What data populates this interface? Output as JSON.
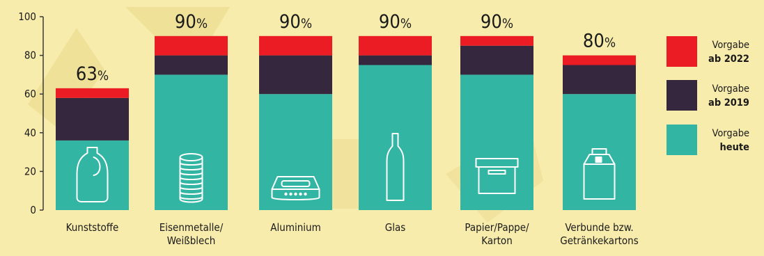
{
  "colors": {
    "background": "#f7ecac",
    "watermark": "#eddd92",
    "vorgabe_ab_2022": "#ec1c24",
    "vorgabe_ab_2019": "#35283e",
    "vorgabe_heute": "#33b5a4",
    "icon": "#ffffff",
    "axis": "#3a3a3a"
  },
  "chart_data": {
    "type": "bar",
    "stacked": true,
    "ylim": [
      0,
      100
    ],
    "yticks": [
      0,
      20,
      40,
      60,
      80,
      100
    ],
    "categories": [
      {
        "label": [
          "Kunststoffe"
        ],
        "icon": "bottle-icon"
      },
      {
        "label": [
          "Eisenmetalle/",
          "Weißblech"
        ],
        "icon": "tin-can-icon"
      },
      {
        "label": [
          "Aluminium"
        ],
        "icon": "aluminium-tray-icon"
      },
      {
        "label": [
          "Glas"
        ],
        "icon": "glass-bottle-icon"
      },
      {
        "label": [
          "Papier/Pappe/",
          "Karton"
        ],
        "icon": "cardboard-box-icon"
      },
      {
        "label": [
          "Verbunde bzw.",
          "Getränkekartons"
        ],
        "icon": "beverage-carton-icon"
      }
    ],
    "series": [
      {
        "key": "heute",
        "color": "#33b5a4",
        "values": [
          36,
          70,
          60,
          75,
          70,
          60
        ]
      },
      {
        "key": "ab_2019",
        "color": "#35283e",
        "values": [
          22,
          10,
          20,
          5,
          15,
          15
        ]
      },
      {
        "key": "ab_2022",
        "color": "#ec1c24",
        "values": [
          5,
          10,
          10,
          10,
          5,
          5
        ]
      }
    ],
    "totals": [
      63,
      90,
      90,
      90,
      90,
      80
    ],
    "total_labels": [
      {
        "number": "63",
        "unit": "%"
      },
      {
        "number": "90",
        "unit": "%"
      },
      {
        "number": "90",
        "unit": "%"
      },
      {
        "number": "90",
        "unit": "%"
      },
      {
        "number": "90",
        "unit": "%"
      },
      {
        "number": "80",
        "unit": "%"
      }
    ],
    "legend": {
      "placement": "right",
      "items": [
        {
          "key": "ab_2022",
          "line1": "Vorgabe",
          "line2": "ab 2022",
          "color": "#ec1c24"
        },
        {
          "key": "ab_2019",
          "line1": "Vorgabe",
          "line2": "ab 2019",
          "color": "#35283e"
        },
        {
          "key": "heute",
          "line1": "Vorgabe",
          "line2": "heute",
          "color": "#33b5a4"
        }
      ]
    }
  }
}
